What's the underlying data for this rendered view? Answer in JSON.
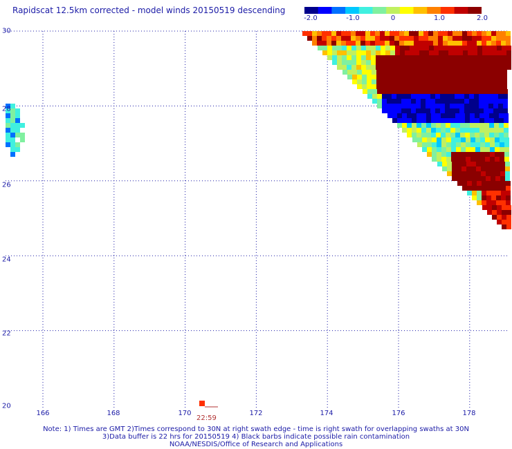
{
  "title": "Rapidscat 12.5km corrected - model winds 20150519 descending",
  "colorbar": {
    "colors": [
      "#00008b",
      "#0000ff",
      "#0070ff",
      "#00c8ff",
      "#40f0e0",
      "#80f0a0",
      "#c0f060",
      "#ffff00",
      "#ffc000",
      "#ff8000",
      "#ff3000",
      "#c00000",
      "#8b0000"
    ],
    "labels": [
      "-2.0",
      "-1.0",
      "0",
      "1.0",
      "2.0"
    ]
  },
  "axes": {
    "lat_ticks": [
      "30",
      "28",
      "26",
      "24",
      "22",
      "20"
    ],
    "lon_ticks": [
      "166",
      "168",
      "170",
      "172",
      "174",
      "176",
      "178"
    ],
    "lat_range": [
      20,
      30
    ],
    "lon_range": [
      165,
      179
    ]
  },
  "time_label": "22:59",
  "notes": {
    "line1": "Note: 1) Times are GMT 2)Times correspond to 30N at right swath edge - time is right swath for overlapping swaths at 30N",
    "line2": "3)Data buffer is 22 hrs for 20150519 4) Black barbs indicate possible rain contamination",
    "line3": "NOAA/NESDIS/Office of Research and Applications"
  }
}
